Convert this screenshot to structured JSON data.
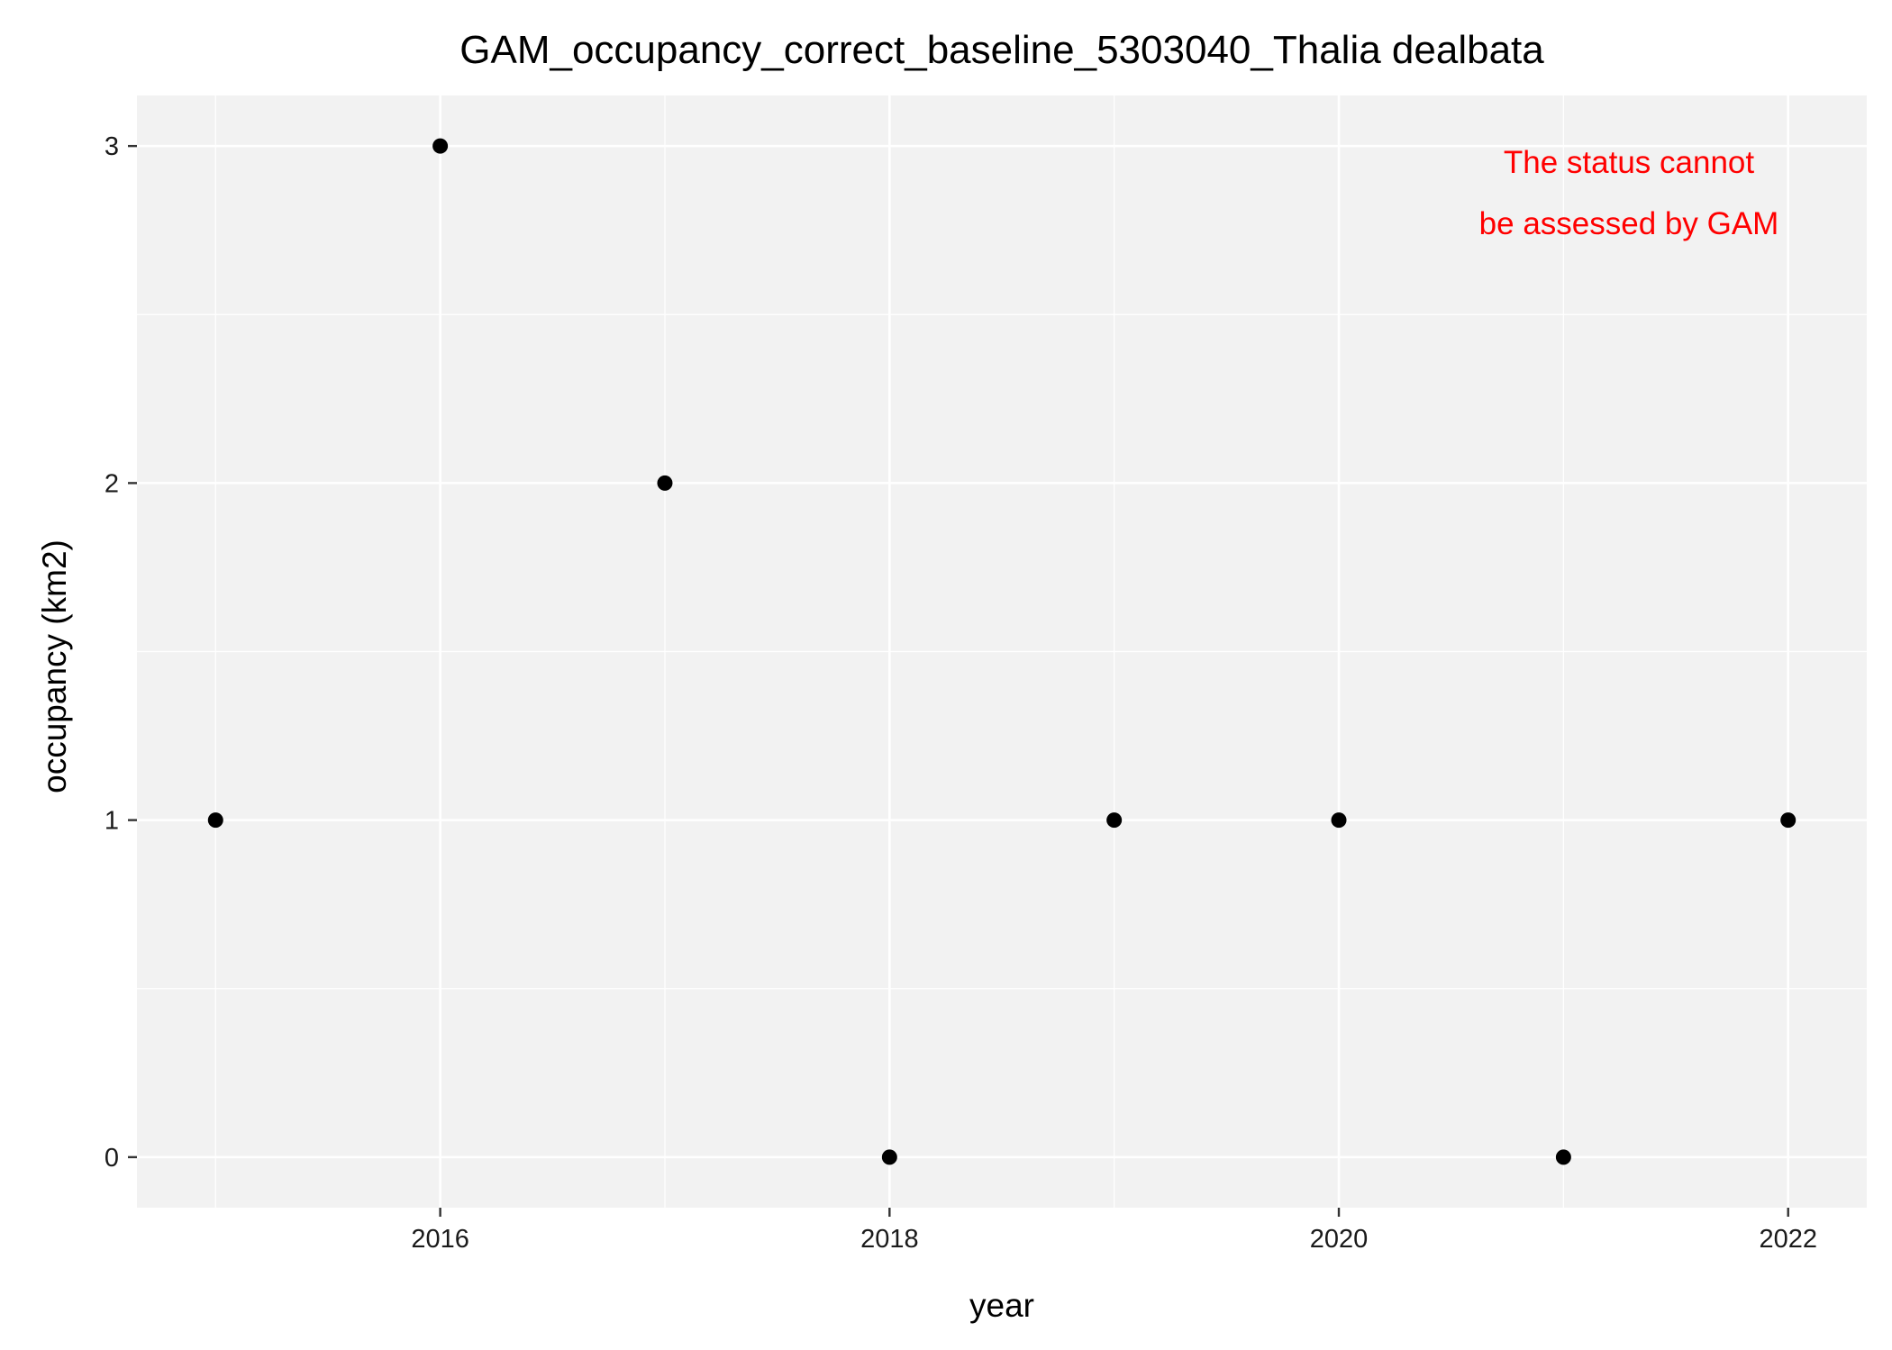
{
  "chart_data": {
    "type": "scatter",
    "title": "GAM_occupancy_correct_baseline_5303040_Thalia dealbata",
    "xlabel": "year",
    "ylabel": "occupancy (km2)",
    "x": [
      2015,
      2016,
      2017,
      2018,
      2019,
      2020,
      2021,
      2022
    ],
    "y": [
      1,
      3,
      2,
      0,
      1,
      1,
      0,
      1
    ],
    "xlim": [
      2014.65,
      2022.35
    ],
    "ylim": [
      -0.15,
      3.15
    ],
    "x_major_ticks": [
      2016,
      2018,
      2020,
      2022
    ],
    "x_tick_labels": [
      "2016",
      "2018",
      "2020",
      "2022"
    ],
    "x_minor_ticks": [
      2015,
      2017,
      2019,
      2021
    ],
    "y_major_ticks": [
      0,
      1,
      2,
      3
    ],
    "y_tick_labels": [
      "0",
      "1",
      "2",
      "3"
    ],
    "y_minor_ticks": [
      0.5,
      1.5,
      2.5
    ],
    "grid": true,
    "annotation": [
      "The status cannot",
      "be assessed by GAM"
    ],
    "annotation_placement": "top-right",
    "colors": {
      "panel": "#f2f2f2",
      "grid": "#ffffff",
      "point": "#000000",
      "annotation": "#ff0000"
    }
  }
}
